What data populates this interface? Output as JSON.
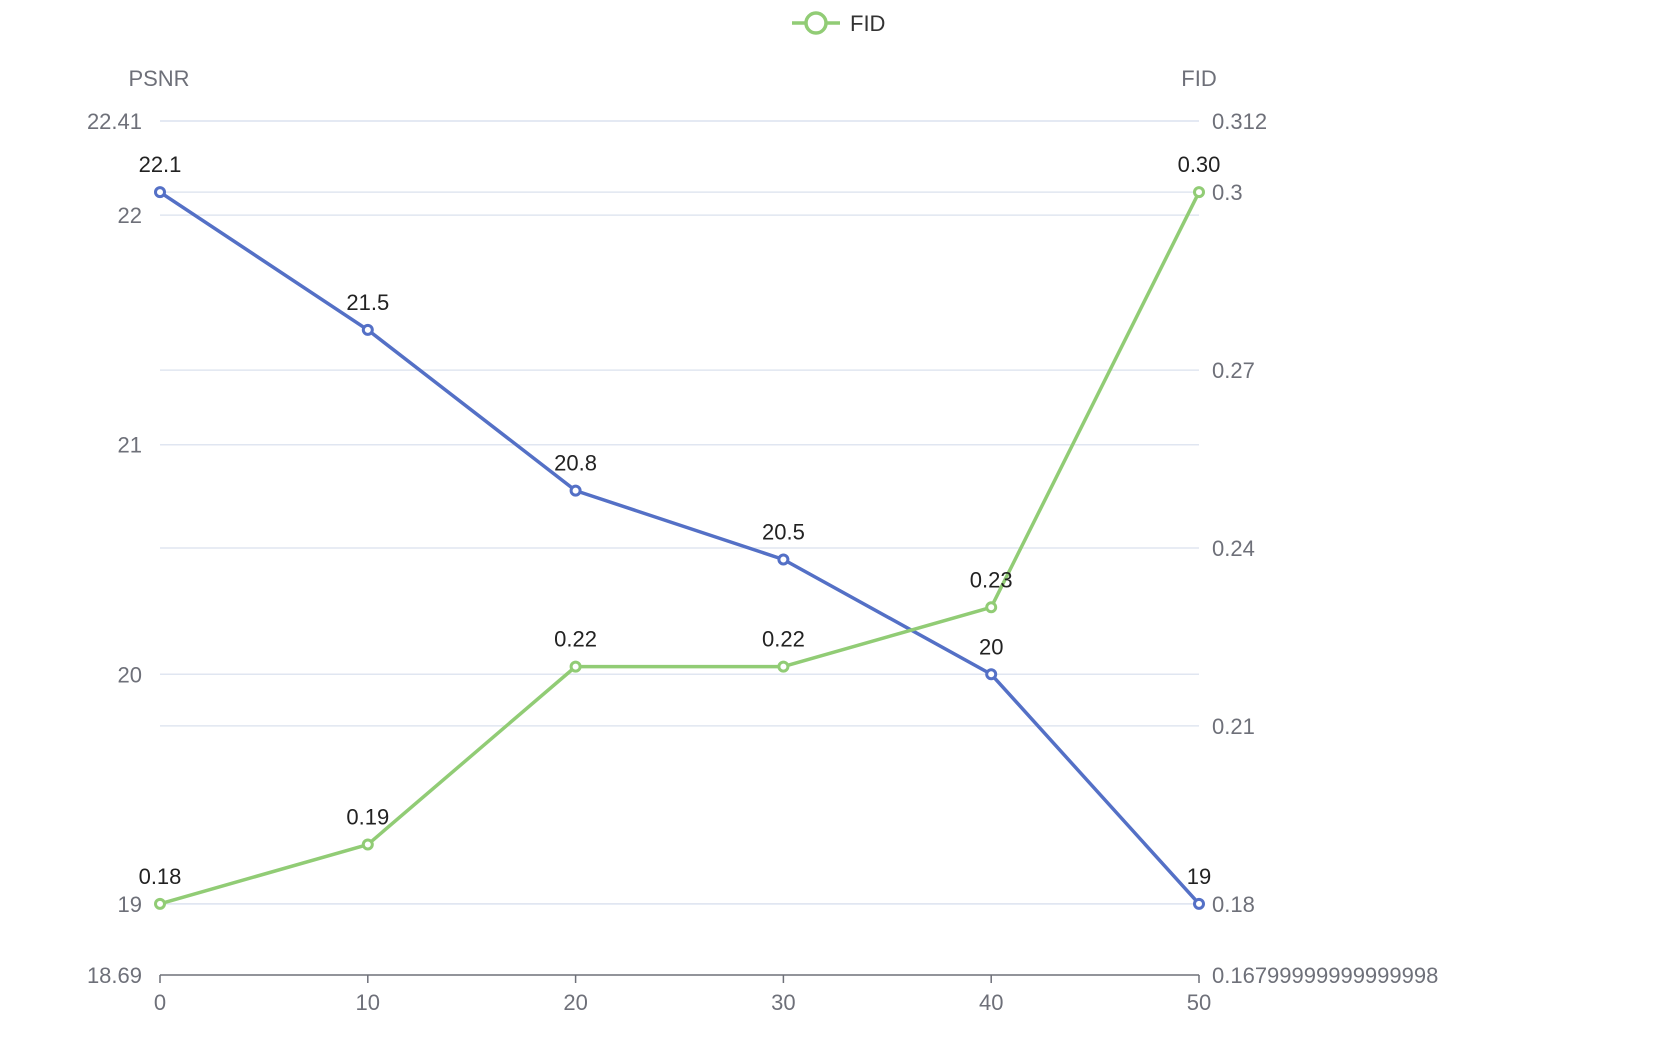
{
  "chart_data": {
    "type": "line",
    "x": [
      0,
      10,
      20,
      30,
      40,
      50
    ],
    "xlim": [
      0,
      50
    ],
    "x_ticks": [
      "0",
      "10",
      "20",
      "30",
      "40",
      "50"
    ],
    "legend": {
      "position": "top-center",
      "entries": [
        "FID"
      ]
    },
    "grid": true,
    "y_left": {
      "name": "PSNR",
      "range": [
        18.69,
        22.41
      ],
      "ticks": [
        {
          "value": 18.69,
          "label": "18.69"
        },
        {
          "value": 19,
          "label": "19"
        },
        {
          "value": 20,
          "label": "20"
        },
        {
          "value": 21,
          "label": "21"
        },
        {
          "value": 22,
          "label": "22"
        },
        {
          "value": 22.41,
          "label": "22.41"
        }
      ]
    },
    "y_right": {
      "name": "FID",
      "range": [
        0.168,
        0.312
      ],
      "ticks": [
        {
          "value": 0.168,
          "label": "0.16799999999999998"
        },
        {
          "value": 0.18,
          "label": "0.18"
        },
        {
          "value": 0.21,
          "label": "0.21"
        },
        {
          "value": 0.24,
          "label": "0.24"
        },
        {
          "value": 0.27,
          "label": "0.27"
        },
        {
          "value": 0.3,
          "label": "0.3"
        },
        {
          "value": 0.312,
          "label": "0.312"
        }
      ]
    },
    "series": [
      {
        "axis": "left",
        "color": "#5470c6",
        "values": [
          22.1,
          21.5,
          20.8,
          20.5,
          20,
          19
        ],
        "labels": [
          "22.1",
          "21.5",
          "20.8",
          "20.5",
          "20",
          "19"
        ]
      },
      {
        "name": "FID",
        "axis": "right",
        "color": "#91cc75",
        "values": [
          0.18,
          0.19,
          0.22,
          0.22,
          0.23,
          0.3
        ],
        "labels": [
          "0.18",
          "0.19",
          "0.22",
          "0.22",
          "0.23",
          "0.30"
        ]
      }
    ]
  }
}
